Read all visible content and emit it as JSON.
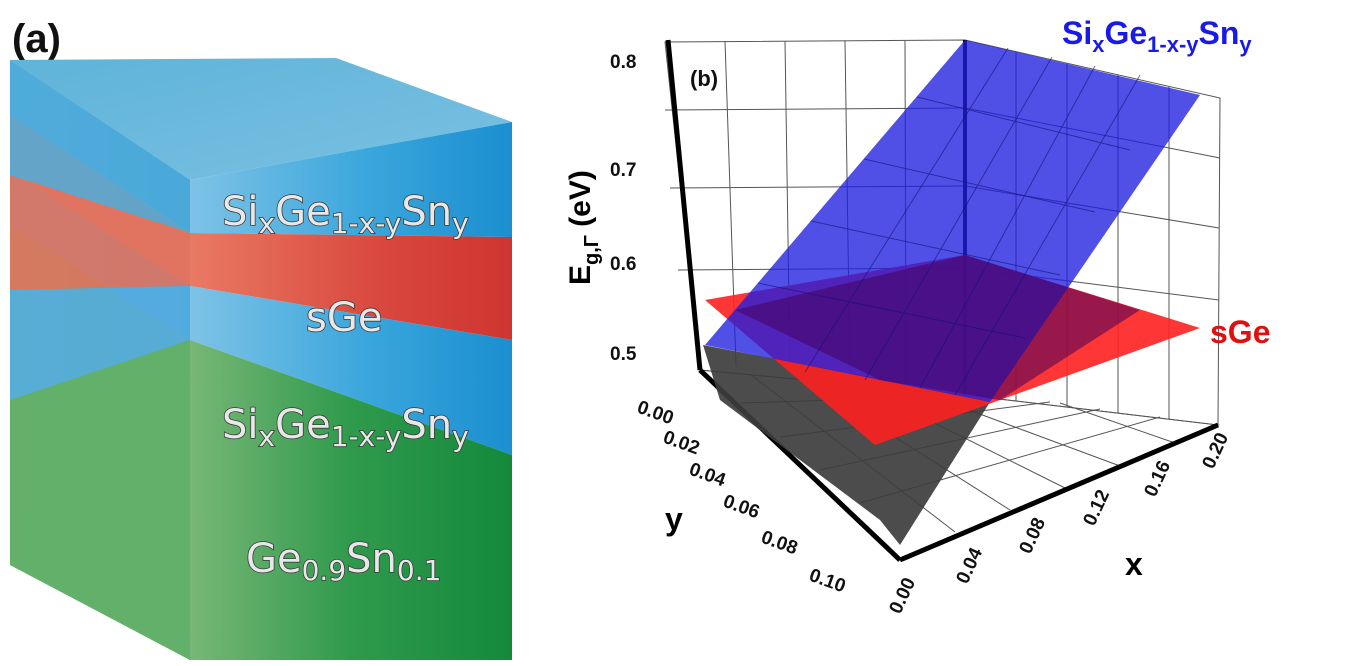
{
  "panel_a": {
    "label": "(a)",
    "layers": [
      {
        "id": "top",
        "text": "Si",
        "sub1": "x",
        "mid": "Ge",
        "sub2": "1-x-y",
        "end": "Sn",
        "sub3": "y",
        "color": "#2fa1d8"
      },
      {
        "id": "sge",
        "text": "sGe",
        "color": "#d5413c"
      },
      {
        "id": "middle",
        "text": "Si",
        "sub1": "x",
        "mid": "Ge",
        "sub2": "1-x-y",
        "end": "Sn",
        "sub3": "y",
        "color": "#2fa1d8"
      },
      {
        "id": "substrate",
        "text": "Ge",
        "sub1": "0.9",
        "mid": "Sn",
        "sub2": "0.1",
        "color": "#1f9b4a"
      }
    ]
  },
  "panel_b": {
    "label": "(b)",
    "zlabel_main": "E",
    "zlabel_sub": "g,Γ",
    "zlabel_unit": " (eV)",
    "xlabel": "x",
    "ylabel": "y",
    "surface_label": {
      "a": "Si",
      "b": "x",
      "c": "Ge",
      "d": "1-x-y",
      "e": "Sn",
      "f": "y"
    },
    "plane_label": "sGe",
    "z_ticks": [
      "0.5",
      "0.6",
      "0.7",
      "0.8"
    ],
    "x_ticks": [
      "0.00",
      "0.04",
      "0.08",
      "0.12",
      "0.16",
      "0.20"
    ],
    "y_ticks": [
      "0.00",
      "0.02",
      "0.04",
      "0.06",
      "0.08",
      "0.10"
    ],
    "colors": {
      "surface": "#1f1fe0",
      "plane": "#ff1a1a",
      "surface_label": "#1a1ae6",
      "plane_label": "#e01010"
    }
  },
  "chart_data": {
    "type": "surface3d",
    "xlabel": "x",
    "ylabel": "y",
    "zlabel": "E_g,Γ (eV)",
    "xlim": [
      0.0,
      0.2
    ],
    "ylim": [
      0.0,
      0.1
    ],
    "zlim": [
      0.45,
      0.8
    ],
    "series": [
      {
        "name": "SixGe1-x-ySny",
        "x": [
          0.0,
          0.2
        ],
        "y": [
          0.0,
          0.1
        ],
        "z_corners": {
          "x0_y0": 0.49,
          "x020_y0": 0.79,
          "x0_y010": 0.35,
          "x020_y010": 0.58
        }
      },
      {
        "name": "sGe",
        "z_constant": 0.545
      }
    ]
  }
}
